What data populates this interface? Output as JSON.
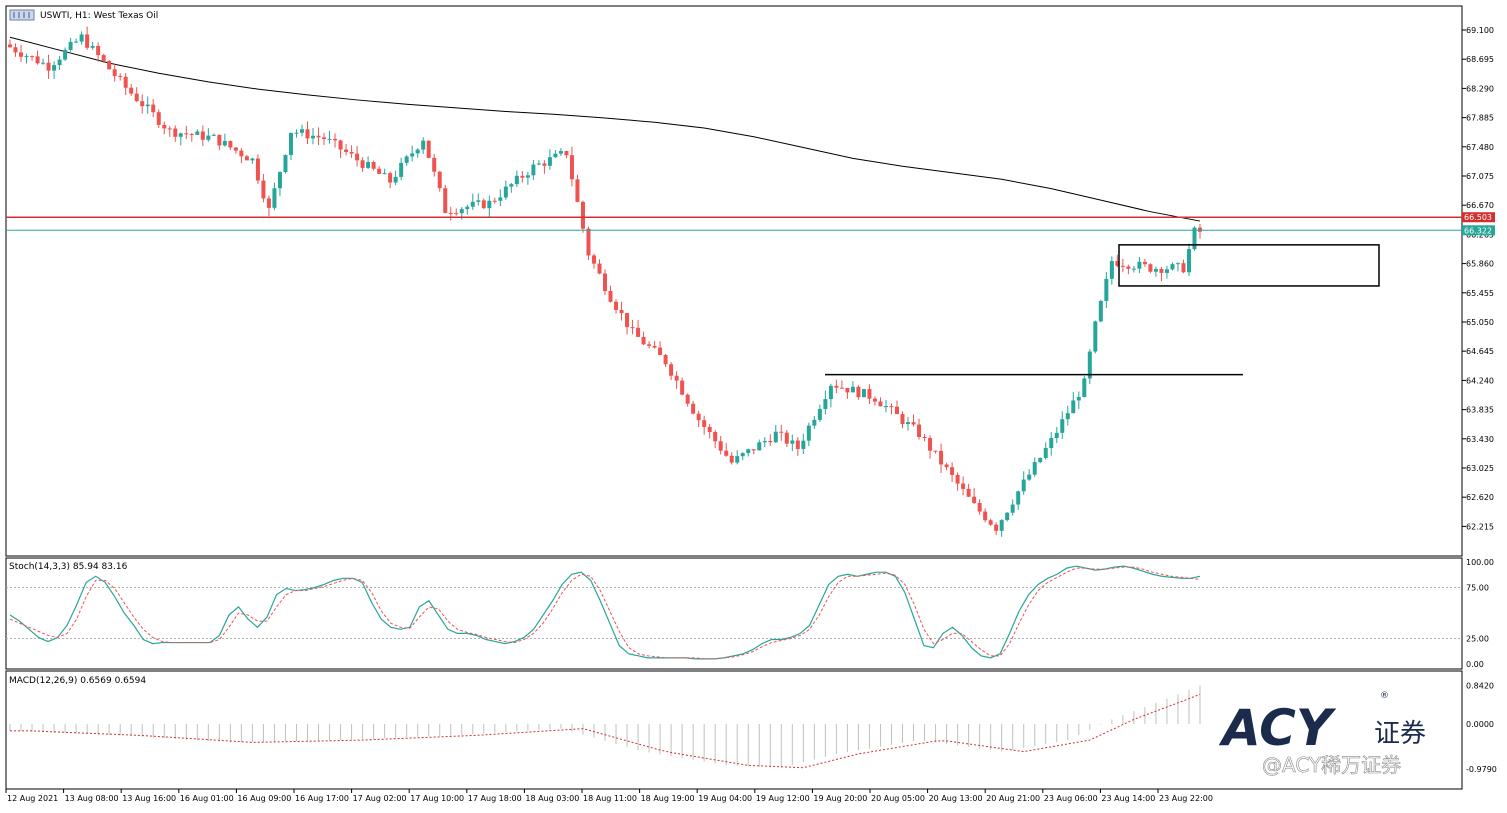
{
  "chart_title": "USWTI, H1:  West Texas Oil",
  "colors": {
    "bull": "#26a69a",
    "bear": "#ef5350",
    "ma": "#000000",
    "resistance": "#d32f2f",
    "bid": "#26a69a",
    "stoch_main": "#26a69a",
    "stoch_signal": "#ef5350",
    "macd_hist": "#c0c0c0",
    "macd_signal": "#d32f2f",
    "logo": "#1a2b4c"
  },
  "price_axis_ticks": [
    "69.100",
    "68.695",
    "68.290",
    "67.885",
    "67.480",
    "67.075",
    "66.670",
    "66.265",
    "65.860",
    "65.455",
    "65.050",
    "64.645",
    "64.240",
    "63.835",
    "63.430",
    "63.025",
    "62.620",
    "62.215"
  ],
  "price_labels": {
    "resistance": "66.503",
    "bid": "66.322"
  },
  "stoch_label": "Stoch(14,3,3) 85.94 83.16",
  "stoch_ticks": [
    "100.00",
    "75.00",
    "25.00",
    "0.00"
  ],
  "macd_label": "MACD(12,26,9) 0.6569 0.6594",
  "macd_ticks": [
    "0.8420",
    "0.0000",
    "-0.9790"
  ],
  "time_labels": [
    "12 Aug 2021",
    "13 Aug 08:00",
    "13 Aug 16:00",
    "16 Aug 01:00",
    "16 Aug 09:00",
    "16 Aug 17:00",
    "17 Aug 02:00",
    "17 Aug 10:00",
    "17 Aug 18:00",
    "18 Aug 03:00",
    "18 Aug 11:00",
    "18 Aug 19:00",
    "19 Aug 04:00",
    "19 Aug 12:00",
    "19 Aug 20:00",
    "20 Aug 05:00",
    "20 Aug 13:00",
    "20 Aug 21:00",
    "23 Aug 06:00",
    "23 Aug 14:00",
    "23 Aug 22:00"
  ],
  "logo": {
    "brand": "ACY",
    "cn": "证券",
    "watermark": "@ACY稀万证券"
  },
  "chart_data": {
    "type": "candlestick",
    "title": "USWTI, H1:  West Texas Oil",
    "ylim": [
      61.95,
      69.3
    ],
    "ma_series": [
      69.0,
      68.82,
      68.64,
      68.5,
      68.38,
      68.28,
      68.2,
      68.13,
      68.07,
      68.02,
      67.97,
      67.93,
      67.88,
      67.82,
      67.74,
      67.62,
      67.47,
      67.32,
      67.21,
      67.12,
      67.03,
      66.9,
      66.74,
      66.58,
      66.45
    ],
    "resistance_level": 66.503,
    "bid_level": 66.322,
    "breakout_level": 64.32,
    "consolidation_box": {
      "price_high": 66.12,
      "price_low": 65.55
    },
    "stoch_levels": [
      75,
      25
    ],
    "stoch_main": [
      48,
      42,
      34,
      26,
      22,
      26,
      38,
      58,
      80,
      86,
      80,
      66,
      50,
      38,
      24,
      20,
      21,
      21,
      21,
      21,
      21,
      21,
      28,
      48,
      56,
      44,
      36,
      46,
      68,
      74,
      72,
      73,
      75,
      78,
      82,
      84,
      84,
      80,
      60,
      44,
      36,
      34,
      36,
      56,
      62,
      48,
      34,
      30,
      30,
      28,
      24,
      22,
      20,
      22,
      26,
      34,
      48,
      62,
      78,
      88,
      90,
      82,
      62,
      40,
      18,
      10,
      8,
      6,
      6,
      6,
      6,
      6,
      5,
      5,
      5,
      6,
      8,
      10,
      14,
      20,
      24,
      24,
      26,
      30,
      38,
      58,
      78,
      86,
      88,
      86,
      88,
      90,
      90,
      86,
      70,
      44,
      18,
      16,
      30,
      36,
      28,
      16,
      8,
      6,
      10,
      30,
      52,
      68,
      78,
      84,
      88,
      94,
      96,
      94,
      92,
      93,
      95,
      96,
      94,
      91,
      88,
      86,
      85,
      84,
      84,
      86
    ],
    "stoch_signal": [
      44,
      40,
      36,
      32,
      28,
      26,
      30,
      44,
      66,
      82,
      82,
      74,
      60,
      46,
      34,
      26,
      22,
      21,
      21,
      21,
      21,
      21,
      24,
      36,
      50,
      48,
      42,
      42,
      56,
      68,
      72,
      72,
      74,
      76,
      79,
      82,
      84,
      82,
      70,
      52,
      40,
      36,
      35,
      46,
      56,
      54,
      42,
      34,
      31,
      29,
      26,
      24,
      22,
      21,
      24,
      30,
      40,
      54,
      70,
      82,
      88,
      86,
      72,
      52,
      32,
      16,
      10,
      8,
      7,
      6,
      6,
      6,
      6,
      5,
      5,
      6,
      7,
      9,
      12,
      17,
      21,
      23,
      25,
      28,
      34,
      48,
      66,
      80,
      86,
      86,
      87,
      88,
      89,
      87,
      78,
      58,
      34,
      20,
      24,
      30,
      30,
      22,
      14,
      8,
      8,
      20,
      40,
      58,
      72,
      80,
      85,
      90,
      94,
      94,
      93,
      93,
      94,
      95,
      95,
      93,
      90,
      88,
      86,
      85,
      84,
      83
    ]
  }
}
